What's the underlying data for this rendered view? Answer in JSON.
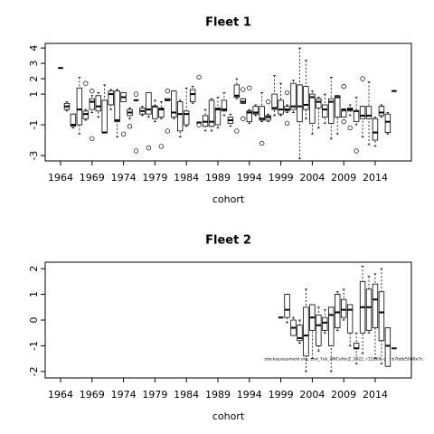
{
  "chart_data": [
    {
      "type": "boxplot",
      "title": "Fleet 1",
      "xlabel": "cohort",
      "xlim": [
        1961.56,
        2019.75
      ],
      "xticks": [
        1964,
        1969,
        1974,
        1979,
        1984,
        1989,
        1994,
        1999,
        2004,
        2009,
        2014
      ],
      "ylim": [
        -3.35,
        4.3
      ],
      "yticks": [
        4,
        3,
        2,
        1,
        -1,
        -3
      ],
      "boxes": [
        {
          "x": 1964,
          "stats": [
            2.7,
            2.7,
            2.7,
            2.7,
            2.7
          ]
        },
        {
          "x": 1965,
          "stats": [
            -0.1,
            0.0,
            0.2,
            0.4,
            0.5
          ]
        },
        {
          "x": 1966,
          "stats": [
            -1.2,
            -1.1,
            -1.0,
            -0.3,
            -0.3
          ]
        },
        {
          "x": 1967,
          "stats": [
            -1.6,
            -1.0,
            0.0,
            1.4,
            2.1
          ]
        },
        {
          "x": 1968,
          "stats": [
            -0.7,
            -0.6,
            -0.3,
            -0.1,
            0.0
          ],
          "outliers": [
            1.7
          ]
        },
        {
          "x": 1969,
          "stats": [
            -0.2,
            0.0,
            0.5,
            0.7,
            0.9
          ],
          "outliers": [
            1.2,
            -1.9
          ]
        },
        {
          "x": 1970,
          "stats": [
            -0.5,
            -0.1,
            0.2,
            0.9,
            1.1
          ]
        },
        {
          "x": 1971,
          "stats": [
            -1.5,
            -1.5,
            -1.5,
            0.6,
            1.6
          ]
        },
        {
          "x": 1972,
          "stats": [
            0.0,
            0.3,
            1.0,
            1.2,
            1.3
          ]
        },
        {
          "x": 1973,
          "stats": [
            -1.8,
            -0.8,
            -0.7,
            1.2,
            1.3
          ]
        },
        {
          "x": 1974,
          "stats": [
            0.5,
            0.5,
            0.8,
            1.1,
            1.1
          ],
          "outliers": [
            -1.6
          ]
        },
        {
          "x": 1975,
          "stats": [
            -0.6,
            -0.4,
            -0.2,
            0.0,
            0.1
          ],
          "outliers": [
            -1.1
          ]
        },
        {
          "x": 1976,
          "stats": [
            0.6,
            0.6,
            0.6,
            0.6,
            0.6
          ],
          "outliers": [
            1.0,
            -2.7
          ]
        },
        {
          "x": 1977,
          "stats": [
            -0.4,
            -0.3,
            -0.1,
            0.1,
            0.2
          ]
        },
        {
          "x": 1978,
          "stats": [
            -0.5,
            -0.3,
            0.0,
            1.1,
            1.1
          ],
          "outliers": [
            -2.5
          ]
        },
        {
          "x": 1979,
          "stats": [
            -0.8,
            -0.6,
            0.2,
            0.2,
            0.6
          ]
        },
        {
          "x": 1980,
          "stats": [
            -0.6,
            -0.5,
            0.0,
            0.1,
            0.5
          ],
          "outliers": [
            -2.4
          ]
        },
        {
          "x": 1981,
          "stats": [
            0.6,
            0.6,
            0.6,
            0.7,
            0.7
          ],
          "outliers": [
            1.2,
            -1.4
          ]
        },
        {
          "x": 1982,
          "stats": [
            -0.6,
            -0.5,
            -0.2,
            1.2,
            1.2
          ]
        },
        {
          "x": 1983,
          "stats": [
            -1.8,
            -1.4,
            -0.3,
            0.5,
            0.6
          ]
        },
        {
          "x": 1984,
          "stats": [
            -1.1,
            -1.0,
            -0.3,
            -0.1,
            1.4
          ]
        },
        {
          "x": 1985,
          "stats": [
            0.4,
            0.5,
            1.0,
            1.3,
            1.5
          ]
        },
        {
          "x": 1986,
          "stats": [
            -0.85,
            -0.85,
            -0.85,
            -0.85,
            -0.85
          ],
          "outliers": [
            2.1,
            -1.0
          ]
        },
        {
          "x": 1987,
          "stats": [
            -1.4,
            -1.1,
            -0.8,
            -0.4,
            0.0
          ]
        },
        {
          "x": 1988,
          "stats": [
            -1.4,
            -1.1,
            -0.8,
            0.6,
            0.7
          ]
        },
        {
          "x": 1989,
          "stats": [
            -1.2,
            -1.0,
            0.0,
            0.1,
            0.8
          ]
        },
        {
          "x": 1990,
          "stats": [
            -0.4,
            -0.1,
            0.0,
            0.6,
            1.1
          ]
        },
        {
          "x": 1991,
          "stats": [
            -1.1,
            -0.9,
            -0.7,
            -0.5,
            -0.3
          ]
        },
        {
          "x": 1992,
          "stats": [
            0.7,
            0.8,
            0.9,
            1.6,
            2.0
          ],
          "outliers": [
            -1.4
          ]
        },
        {
          "x": 1993,
          "stats": [
            0.4,
            0.4,
            0.5,
            0.7,
            0.7
          ],
          "outliers": [
            1.3,
            -0.6
          ]
        },
        {
          "x": 1994,
          "stats": [
            -0.9,
            -0.8,
            -0.2,
            -0.1,
            0.0
          ],
          "outliers": [
            1.4
          ]
        },
        {
          "x": 1995,
          "stats": [
            -0.4,
            -0.3,
            -0.2,
            0.2,
            0.3
          ]
        },
        {
          "x": 1996,
          "stats": [
            -0.8,
            -0.7,
            -0.6,
            0.2,
            1.1
          ],
          "outliers": [
            -2.2
          ]
        },
        {
          "x": 1997,
          "stats": [
            -0.8,
            -0.7,
            -0.5,
            -0.4,
            -0.3
          ],
          "outliers": [
            0.5
          ]
        },
        {
          "x": 1998,
          "stats": [
            -0.4,
            0.0,
            0.1,
            1.0,
            2.2
          ]
        },
        {
          "x": 1999,
          "stats": [
            -0.4,
            -0.3,
            0.0,
            0.6,
            1.7
          ]
        },
        {
          "x": 2000,
          "stats": [
            -0.2,
            -0.1,
            0.0,
            0.2,
            0.3
          ],
          "outliers": [
            1.1,
            -0.9
          ]
        },
        {
          "x": 2001,
          "stats": [
            -0.2,
            0.0,
            0.2,
            1.7,
            1.9
          ]
        },
        {
          "x": 2002,
          "stats": [
            -3.2,
            -0.8,
            0.2,
            1.6,
            4.0
          ]
        },
        {
          "x": 2003,
          "stats": [
            -0.6,
            0.0,
            0.3,
            1.5,
            3.2
          ]
        },
        {
          "x": 2004,
          "stats": [
            -1.6,
            -0.9,
            0.8,
            1.0,
            1.2
          ]
        },
        {
          "x": 2005,
          "stats": [
            -1.2,
            0.1,
            0.5,
            0.7,
            0.8
          ]
        },
        {
          "x": 2006,
          "stats": [
            -0.9,
            -0.5,
            0.0,
            0.3,
            1.0
          ]
        },
        {
          "x": 2007,
          "stats": [
            -1.9,
            -0.9,
            0.5,
            0.7,
            2.1
          ]
        },
        {
          "x": 2008,
          "stats": [
            -1.6,
            -0.5,
            0.8,
            0.9,
            0.9
          ]
        },
        {
          "x": 2009,
          "stats": [
            -0.5,
            -0.5,
            0.0,
            -0.1,
            -0.1
          ],
          "outliers": [
            1.5,
            -0.8
          ]
        },
        {
          "x": 2010,
          "stats": [
            -0.4,
            -0.1,
            0.0,
            0.1,
            0.3
          ],
          "outliers": [
            -1.2
          ]
        },
        {
          "x": 2011,
          "stats": [
            -1.0,
            -0.8,
            -0.1,
            -0.1,
            0.8
          ],
          "outliers": [
            -2.7
          ]
        },
        {
          "x": 2012,
          "stats": [
            -1.8,
            -0.6,
            -0.4,
            0.2,
            0.2
          ],
          "outliers": [
            2.0
          ]
        },
        {
          "x": 2013,
          "stats": [
            -2.3,
            -0.6,
            -0.4,
            0.2,
            1.8
          ]
        },
        {
          "x": 2014,
          "stats": [
            -2.4,
            -2.0,
            -1.5,
            -0.6,
            -0.5
          ]
        },
        {
          "x": 2015,
          "stats": [
            -0.5,
            -0.4,
            -0.2,
            0.2,
            0.3
          ]
        },
        {
          "x": 2016,
          "stats": [
            -1.6,
            -1.5,
            -0.8,
            -0.3,
            -0.2
          ]
        },
        {
          "x": 2017,
          "stats": [
            1.2,
            1.2,
            1.2,
            1.2,
            1.2
          ]
        }
      ]
    },
    {
      "type": "boxplot",
      "title": "Fleet 2",
      "xlabel": "cohort",
      "xlim": [
        1961.56,
        2019.75
      ],
      "xticks": [
        1964,
        1969,
        1974,
        1979,
        1984,
        1989,
        1994,
        1999,
        2004,
        2009,
        2014
      ],
      "ylim": [
        -2.25,
        2.25
      ],
      "yticks": [
        2,
        1,
        0,
        -1,
        -2
      ],
      "note": "stockassessment.org, cod_7ek_WKCelticZ_2022, r12269, git: b7bbb5048e7c",
      "boxes": [
        {
          "x": 1999,
          "stats": [
            0.1,
            0.1,
            0.1,
            0.1,
            0.1
          ]
        },
        {
          "x": 2000,
          "stats": [
            -0.1,
            0.1,
            0.4,
            1.0,
            1.0
          ]
        },
        {
          "x": 2001,
          "stats": [
            -0.6,
            -0.6,
            -0.3,
            0.0,
            0.1
          ]
        },
        {
          "x": 2002,
          "stats": [
            -0.9,
            -0.8,
            -0.7,
            -0.2,
            0.0
          ]
        },
        {
          "x": 2003,
          "stats": [
            -2.0,
            -1.4,
            -0.6,
            0.5,
            1.2
          ]
        },
        {
          "x": 2004,
          "stats": [
            -1.5,
            -0.4,
            0.1,
            0.6,
            0.6
          ]
        },
        {
          "x": 2005,
          "stats": [
            -1.2,
            -1.0,
            -0.2,
            0.2,
            0.5
          ]
        },
        {
          "x": 2006,
          "stats": [
            -0.5,
            -0.4,
            -0.1,
            0.1,
            0.4
          ]
        },
        {
          "x": 2007,
          "stats": [
            -2.0,
            -1.0,
            0.2,
            0.5,
            0.5
          ]
        },
        {
          "x": 2008,
          "stats": [
            -0.4,
            -0.3,
            0.3,
            1.0,
            1.1
          ]
        },
        {
          "x": 2009,
          "stats": [
            0.0,
            0.1,
            0.4,
            0.8,
            1.2
          ]
        },
        {
          "x": 2010,
          "stats": [
            -1.0,
            -0.5,
            0.4,
            0.6,
            0.6
          ]
        },
        {
          "x": 2011,
          "stats": [
            -1.7,
            -1.1,
            -1.1,
            -0.9,
            -0.5
          ]
        },
        {
          "x": 2012,
          "stats": [
            -1.3,
            -0.5,
            0.5,
            1.5,
            2.1
          ]
        },
        {
          "x": 2013,
          "stats": [
            -0.5,
            -0.4,
            0.5,
            1.2,
            1.7
          ]
        },
        {
          "x": 2014,
          "stats": [
            -1.5,
            -0.3,
            0.8,
            1.4,
            1.8
          ]
        },
        {
          "x": 2015,
          "stats": [
            -1.7,
            -0.8,
            0.3,
            1.1,
            2.0
          ]
        },
        {
          "x": 2016,
          "stats": [
            -1.8,
            -1.8,
            -1.0,
            -0.3,
            -0.3
          ]
        },
        {
          "x": 2017,
          "stats": [
            -1.1,
            -1.1,
            -1.1,
            -1.1,
            -1.1
          ]
        }
      ]
    }
  ]
}
